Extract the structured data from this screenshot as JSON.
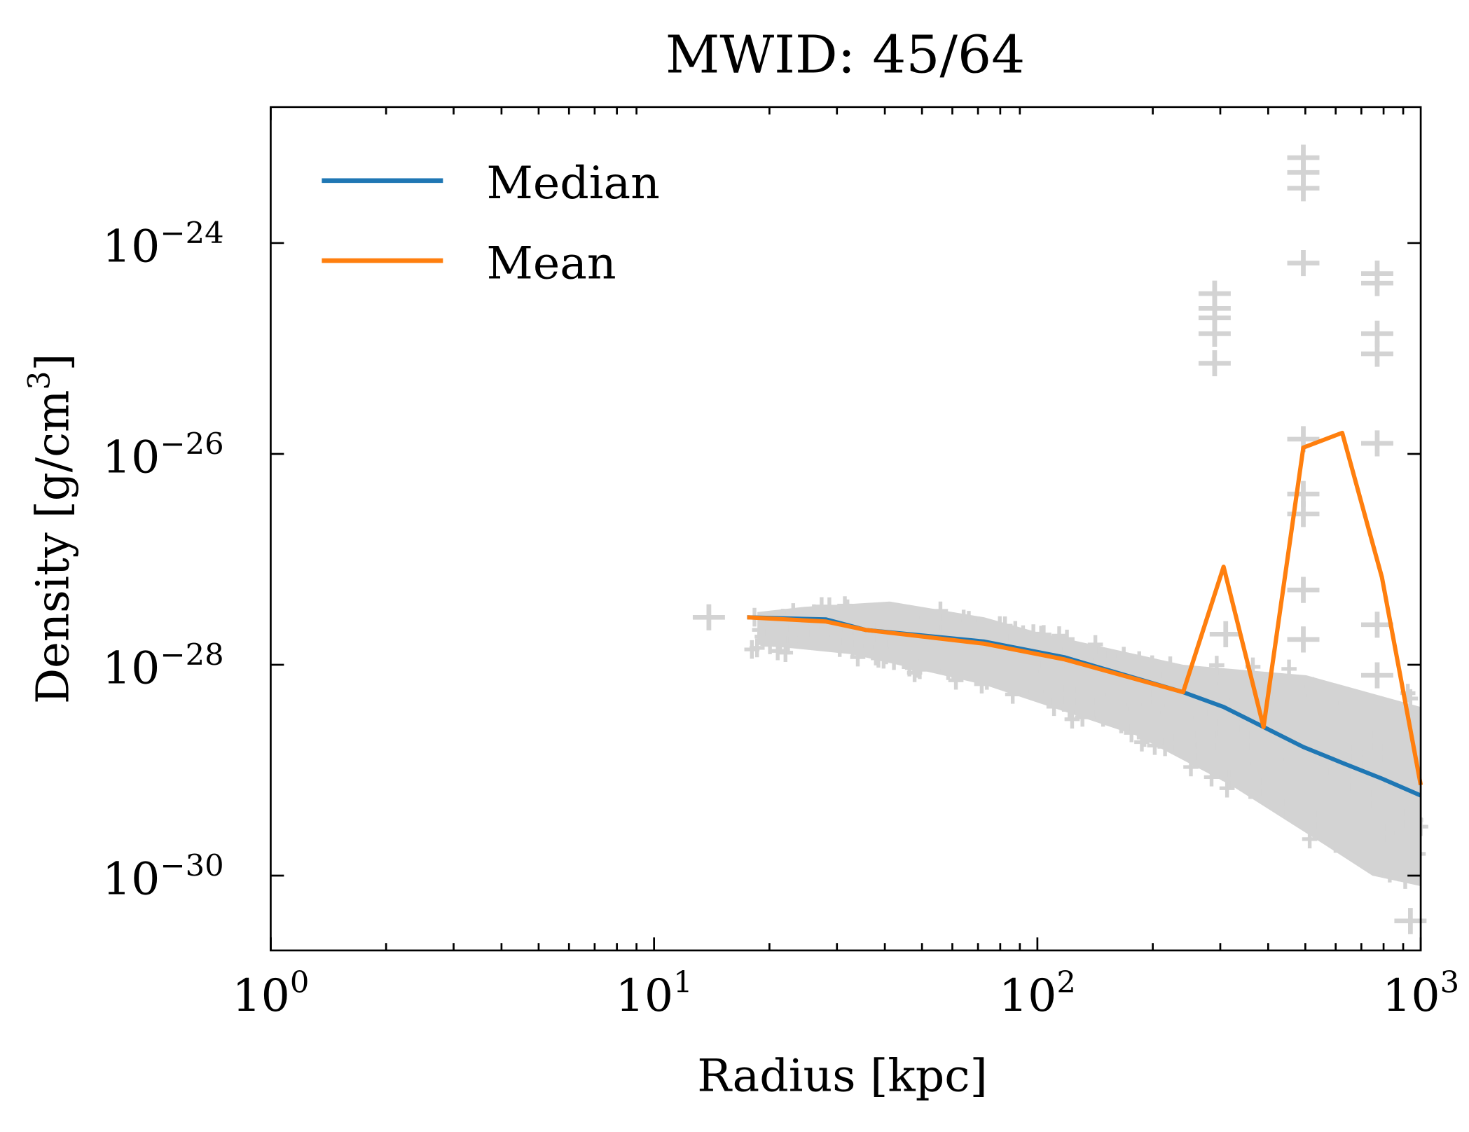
{
  "chart_data": {
    "type": "line",
    "title": "MWID: 45/64",
    "xlabel": "Radius [kpc]",
    "ylabel": "Density [g/cm3]",
    "ylabel_base": "Density [g/cm",
    "ylabel_sup": "3",
    "ylabel_end": "]",
    "xscale": "log",
    "yscale": "log",
    "xlim": [
      1,
      1000
    ],
    "ylim": [
      1.95e-31,
      1.95e-23
    ],
    "grid": false,
    "legend_position": "top-left",
    "x_ticks": [
      {
        "base": "10",
        "exp": "0",
        "value": 1
      },
      {
        "base": "10",
        "exp": "1",
        "value": 10
      },
      {
        "base": "10",
        "exp": "2",
        "value": 100
      },
      {
        "base": "10",
        "exp": "3",
        "value": 1000
      }
    ],
    "y_ticks": [
      {
        "base": "10",
        "exp": "−24",
        "value": -24
      },
      {
        "base": "10",
        "exp": "−26",
        "value": -26
      },
      {
        "base": "10",
        "exp": "−28",
        "value": -28
      },
      {
        "base": "10",
        "exp": "−30",
        "value": -30
      }
    ],
    "series": [
      {
        "name": "Median",
        "color": "#1f77b4",
        "x": [
          17.5,
          28.1,
          35.7,
          72.7,
          118,
          240,
          306,
          389,
          494,
          624,
          792,
          1000
        ],
        "log10_y": [
          -27.55,
          -27.57,
          -27.67,
          -27.78,
          -27.93,
          -28.26,
          -28.4,
          -28.59,
          -28.78,
          -28.93,
          -29.08,
          -29.24
        ]
      },
      {
        "name": "Mean",
        "color": "#ff7f0e",
        "x": [
          17.5,
          28.1,
          35.7,
          72.7,
          118,
          240,
          306,
          389,
          494,
          624,
          792,
          1000
        ],
        "log10_y": [
          -27.55,
          -27.59,
          -27.67,
          -27.8,
          -27.95,
          -28.26,
          -27.07,
          -28.59,
          -25.94,
          -25.8,
          -27.17,
          -29.14
        ]
      }
    ],
    "scatter": {
      "color": "#d3d3d3",
      "marker": "plus",
      "band_upper": {
        "x": [
          18.6,
          24.7,
          41.2,
          72.7,
          102,
          240,
          503,
          1000
        ],
        "log10_y": [
          -27.5,
          -27.45,
          -27.4,
          -27.55,
          -27.7,
          -28.0,
          -28.1,
          -28.4
        ]
      },
      "band_lower": {
        "x": [
          18.6,
          32.8,
          72.7,
          181,
          319,
          563,
          748,
          1000
        ],
        "log10_y": [
          -27.81,
          -27.9,
          -28.19,
          -28.67,
          -29.14,
          -29.71,
          -30.0,
          -30.1
        ]
      },
      "outliers": {
        "x": [
          13.9,
          290,
          290,
          290,
          290,
          290,
          494,
          494,
          494,
          494,
          770,
          770,
          770,
          770,
          770,
          494,
          494,
          494,
          494,
          494,
          770,
          770,
          310,
          940
        ],
        "log10_y": [
          -27.55,
          -24.48,
          -24.62,
          -24.71,
          -24.86,
          -25.14,
          -23.19,
          -23.33,
          -23.48,
          -24.19,
          -24.29,
          -24.38,
          -24.86,
          -25.05,
          -25.9,
          -25.86,
          -26.38,
          -26.57,
          -27.29,
          -27.76,
          -27.62,
          -28.1,
          -27.71,
          -30.43
        ]
      }
    }
  }
}
